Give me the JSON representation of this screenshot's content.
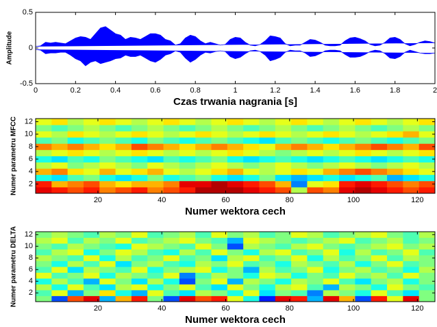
{
  "chart_data": [
    {
      "type": "area",
      "ylabel": "Amplitude",
      "xlabel": "Czas trwania nagrania [s]",
      "color": "#0000ff",
      "xlim": [
        0,
        2
      ],
      "ylim": [
        -0.5,
        0.5
      ],
      "xticks": [
        0,
        0.2,
        0.4,
        0.6,
        0.8,
        1,
        1.2,
        1.4,
        1.6,
        1.8,
        2
      ],
      "yticks": [
        -0.5,
        0,
        0.5
      ],
      "x": [
        0,
        0.025,
        0.05,
        0.075,
        0.1,
        0.125,
        0.15,
        0.175,
        0.2,
        0.225,
        0.25,
        0.275,
        0.3,
        0.325,
        0.35,
        0.375,
        0.4,
        0.425,
        0.45,
        0.475,
        0.5,
        0.525,
        0.55,
        0.575,
        0.6,
        0.625,
        0.65,
        0.675,
        0.7,
        0.725,
        0.75,
        0.775,
        0.8,
        0.825,
        0.85,
        0.875,
        0.9,
        0.925,
        0.95,
        0.975,
        1,
        1.025,
        1.05,
        1.075,
        1.1,
        1.125,
        1.15,
        1.175,
        1.2,
        1.225,
        1.25,
        1.275,
        1.3,
        1.325,
        1.35,
        1.375,
        1.4,
        1.425,
        1.45,
        1.475,
        1.5,
        1.525,
        1.55,
        1.575,
        1.6,
        1.625,
        1.65,
        1.675,
        1.7,
        1.725,
        1.75,
        1.775,
        1.8,
        1.825,
        1.85,
        1.875,
        1.9,
        1.925,
        1.95,
        1.975,
        2
      ],
      "upper": [
        0.02,
        0.03,
        0.08,
        0.07,
        0.08,
        0.07,
        0.06,
        0.1,
        0.14,
        0.16,
        0.15,
        0.12,
        0.2,
        0.28,
        0.3,
        0.25,
        0.2,
        0.18,
        0.12,
        0.15,
        0.14,
        0.12,
        0.16,
        0.2,
        0.2,
        0.18,
        0.12,
        0.1,
        0.04,
        0.06,
        0.14,
        0.18,
        0.16,
        0.1,
        0.06,
        0.08,
        0.06,
        0.04,
        0.05,
        0.12,
        0.15,
        0.14,
        0.08,
        0.04,
        0.03,
        0.05,
        0.1,
        0.17,
        0.16,
        0.14,
        0.06,
        0.03,
        0.04,
        0.04,
        0.08,
        0.12,
        0.11,
        0.08,
        0.04,
        0.03,
        0.03,
        0.04,
        0.1,
        0.14,
        0.15,
        0.13,
        0.1,
        0.05,
        0.03,
        0.04,
        0.08,
        0.14,
        0.15,
        0.12,
        0.06,
        0.03,
        0.05,
        0.08,
        0.1,
        0.09,
        0.07
      ],
      "lower": [
        -0.02,
        -0.03,
        -0.08,
        -0.07,
        -0.07,
        -0.06,
        -0.06,
        -0.1,
        -0.15,
        -0.18,
        -0.25,
        -0.2,
        -0.18,
        -0.22,
        -0.2,
        -0.18,
        -0.15,
        -0.14,
        -0.1,
        -0.12,
        -0.12,
        -0.1,
        -0.14,
        -0.18,
        -0.2,
        -0.16,
        -0.1,
        -0.08,
        -0.04,
        -0.06,
        -0.14,
        -0.2,
        -0.16,
        -0.1,
        -0.06,
        -0.07,
        -0.05,
        -0.04,
        -0.05,
        -0.12,
        -0.15,
        -0.13,
        -0.08,
        -0.04,
        -0.03,
        -0.05,
        -0.1,
        -0.18,
        -0.16,
        -0.13,
        -0.06,
        -0.03,
        -0.04,
        -0.04,
        -0.07,
        -0.12,
        -0.11,
        -0.08,
        -0.04,
        -0.03,
        -0.03,
        -0.04,
        -0.09,
        -0.13,
        -0.13,
        -0.12,
        -0.09,
        -0.05,
        -0.03,
        -0.04,
        -0.08,
        -0.14,
        -0.15,
        -0.12,
        -0.06,
        -0.03,
        -0.05,
        -0.07,
        -0.08,
        -0.08,
        -0.07
      ]
    },
    {
      "type": "heatmap",
      "ylabel": "Numer parametru MFCC",
      "xlabel": "Numer wektora cech",
      "colormap": "jet",
      "xlim": [
        0.5,
        125.5
      ],
      "ylim": [
        0.5,
        12.5
      ],
      "zlim": [
        0,
        1
      ],
      "xticks": [
        20,
        40,
        60,
        80,
        100,
        120
      ],
      "yticks": [
        2,
        4,
        6,
        8,
        10,
        12
      ],
      "z": [
        [
          0.9,
          0.85,
          0.8,
          0.85,
          0.75,
          0.8,
          0.85,
          0.75,
          0.8,
          0.85,
          0.95,
          0.95,
          0.95,
          0.9,
          0.85,
          0.8,
          0.55,
          0.8,
          0.75,
          0.9,
          0.95,
          0.9,
          0.85,
          0.8,
          0.85
        ],
        [
          0.85,
          0.7,
          0.75,
          0.8,
          0.7,
          0.65,
          0.7,
          0.7,
          0.75,
          0.9,
          0.9,
          0.95,
          0.9,
          0.85,
          0.8,
          0.7,
          0.25,
          0.6,
          0.65,
          0.85,
          0.9,
          0.85,
          0.8,
          0.75,
          0.8
        ],
        [
          0.4,
          0.35,
          0.45,
          0.5,
          0.4,
          0.35,
          0.4,
          0.5,
          0.4,
          0.45,
          0.5,
          0.4,
          0.35,
          0.4,
          0.5,
          0.35,
          0.3,
          0.35,
          0.4,
          0.35,
          0.4,
          0.45,
          0.3,
          0.35,
          0.4
        ],
        [
          0.7,
          0.75,
          0.65,
          0.6,
          0.7,
          0.6,
          0.65,
          0.7,
          0.6,
          0.55,
          0.6,
          0.65,
          0.7,
          0.6,
          0.55,
          0.6,
          0.65,
          0.6,
          0.7,
          0.75,
          0.8,
          0.75,
          0.7,
          0.65,
          0.6
        ],
        [
          0.55,
          0.6,
          0.5,
          0.55,
          0.6,
          0.55,
          0.5,
          0.6,
          0.55,
          0.5,
          0.55,
          0.6,
          0.55,
          0.5,
          0.55,
          0.6,
          0.55,
          0.5,
          0.55,
          0.6,
          0.55,
          0.5,
          0.55,
          0.6,
          0.55
        ],
        [
          0.4,
          0.35,
          0.45,
          0.4,
          0.5,
          0.45,
          0.4,
          0.35,
          0.45,
          0.4,
          0.45,
          0.5,
          0.4,
          0.35,
          0.4,
          0.45,
          0.4,
          0.35,
          0.4,
          0.45,
          0.4,
          0.35,
          0.4,
          0.45,
          0.4
        ],
        [
          0.55,
          0.6,
          0.65,
          0.6,
          0.55,
          0.6,
          0.65,
          0.6,
          0.55,
          0.6,
          0.55,
          0.6,
          0.65,
          0.6,
          0.55,
          0.5,
          0.55,
          0.6,
          0.55,
          0.6,
          0.65,
          0.6,
          0.55,
          0.6,
          0.65
        ],
        [
          0.75,
          0.7,
          0.75,
          0.7,
          0.65,
          0.7,
          0.8,
          0.75,
          0.7,
          0.65,
          0.7,
          0.75,
          0.7,
          0.65,
          0.6,
          0.7,
          0.75,
          0.7,
          0.65,
          0.7,
          0.75,
          0.8,
          0.75,
          0.7,
          0.8
        ],
        [
          0.45,
          0.5,
          0.4,
          0.45,
          0.5,
          0.45,
          0.4,
          0.5,
          0.45,
          0.4,
          0.45,
          0.5,
          0.45,
          0.4,
          0.35,
          0.45,
          0.5,
          0.45,
          0.4,
          0.45,
          0.5,
          0.45,
          0.4,
          0.45,
          0.5
        ],
        [
          0.6,
          0.55,
          0.65,
          0.6,
          0.55,
          0.6,
          0.65,
          0.6,
          0.55,
          0.6,
          0.65,
          0.6,
          0.55,
          0.6,
          0.65,
          0.6,
          0.55,
          0.6,
          0.65,
          0.6,
          0.55,
          0.6,
          0.65,
          0.7,
          0.6
        ],
        [
          0.5,
          0.45,
          0.5,
          0.55,
          0.5,
          0.45,
          0.5,
          0.55,
          0.5,
          0.45,
          0.5,
          0.55,
          0.5,
          0.45,
          0.5,
          0.55,
          0.5,
          0.45,
          0.5,
          0.55,
          0.5,
          0.45,
          0.5,
          0.55,
          0.5
        ],
        [
          0.6,
          0.65,
          0.55,
          0.6,
          0.65,
          0.6,
          0.55,
          0.6,
          0.65,
          0.6,
          0.55,
          0.6,
          0.65,
          0.6,
          0.55,
          0.6,
          0.65,
          0.6,
          0.55,
          0.6,
          0.65,
          0.6,
          0.55,
          0.6,
          0.65
        ]
      ]
    },
    {
      "type": "heatmap",
      "ylabel": "Numer parametru DELTA",
      "xlabel": "Numer wektora cech",
      "colormap": "jet",
      "xlim": [
        0.5,
        125.5
      ],
      "ylim": [
        0.5,
        12.5
      ],
      "zlim": [
        0,
        1
      ],
      "xticks": [
        20,
        40,
        60,
        80,
        100,
        120
      ],
      "yticks": [
        2,
        4,
        6,
        8,
        10,
        12
      ],
      "z": [
        [
          0.5,
          0.2,
          0.8,
          0.9,
          0.3,
          0.7,
          0.85,
          0.5,
          0.2,
          0.9,
          0.8,
          0.85,
          0.6,
          0.4,
          0.15,
          0.9,
          0.85,
          0.3,
          0.9,
          0.7,
          0.2,
          0.85,
          0.6,
          0.9,
          0.5
        ],
        [
          0.45,
          0.6,
          0.3,
          0.5,
          0.65,
          0.4,
          0.3,
          0.6,
          0.45,
          0.35,
          0.55,
          0.5,
          0.4,
          0.6,
          0.35,
          0.5,
          0.45,
          0.25,
          0.55,
          0.5,
          0.4,
          0.6,
          0.45,
          0.35,
          0.5
        ],
        [
          0.55,
          0.4,
          0.6,
          0.45,
          0.35,
          0.55,
          0.6,
          0.4,
          0.5,
          0.6,
          0.45,
          0.35,
          0.6,
          0.5,
          0.4,
          0.55,
          0.6,
          0.45,
          0.3,
          0.55,
          0.5,
          0.4,
          0.6,
          0.5,
          0.45
        ],
        [
          0.4,
          0.55,
          0.45,
          0.3,
          0.6,
          0.5,
          0.35,
          0.55,
          0.4,
          0.2,
          0.5,
          0.6,
          0.3,
          0.55,
          0.5,
          0.4,
          0.55,
          0.5,
          0.6,
          0.45,
          0.35,
          0.5,
          0.55,
          0.4,
          0.5
        ],
        [
          0.6,
          0.45,
          0.5,
          0.6,
          0.4,
          0.55,
          0.5,
          0.45,
          0.6,
          0.25,
          0.45,
          0.55,
          0.5,
          0.4,
          0.6,
          0.55,
          0.4,
          0.5,
          0.45,
          0.6,
          0.5,
          0.55,
          0.45,
          0.6,
          0.5
        ],
        [
          0.45,
          0.6,
          0.35,
          0.55,
          0.5,
          0.45,
          0.6,
          0.4,
          0.5,
          0.55,
          0.6,
          0.4,
          0.5,
          0.3,
          0.55,
          0.45,
          0.5,
          0.6,
          0.4,
          0.5,
          0.55,
          0.45,
          0.5,
          0.4,
          0.55
        ],
        [
          0.5,
          0.4,
          0.55,
          0.45,
          0.6,
          0.35,
          0.5,
          0.55,
          0.45,
          0.4,
          0.55,
          0.5,
          0.6,
          0.45,
          0.5,
          0.4,
          0.55,
          0.5,
          0.45,
          0.55,
          0.4,
          0.5,
          0.6,
          0.45,
          0.5
        ],
        [
          0.55,
          0.5,
          0.45,
          0.6,
          0.4,
          0.55,
          0.45,
          0.5,
          0.6,
          0.45,
          0.5,
          0.35,
          0.55,
          0.6,
          0.45,
          0.5,
          0.6,
          0.4,
          0.55,
          0.45,
          0.5,
          0.6,
          0.45,
          0.55,
          0.5
        ],
        [
          0.45,
          0.55,
          0.6,
          0.4,
          0.5,
          0.6,
          0.55,
          0.45,
          0.4,
          0.55,
          0.45,
          0.6,
          0.5,
          0.4,
          0.55,
          0.6,
          0.45,
          0.5,
          0.6,
          0.4,
          0.55,
          0.45,
          0.5,
          0.6,
          0.45
        ],
        [
          0.5,
          0.45,
          0.55,
          0.5,
          0.45,
          0.4,
          0.6,
          0.55,
          0.5,
          0.45,
          0.6,
          0.5,
          0.2,
          0.55,
          0.5,
          0.45,
          0.55,
          0.6,
          0.5,
          0.45,
          0.5,
          0.55,
          0.6,
          0.5,
          0.55
        ],
        [
          0.55,
          0.6,
          0.45,
          0.55,
          0.5,
          0.6,
          0.45,
          0.5,
          0.55,
          0.6,
          0.5,
          0.45,
          0.3,
          0.6,
          0.55,
          0.5,
          0.45,
          0.5,
          0.55,
          0.6,
          0.45,
          0.5,
          0.55,
          0.45,
          0.5
        ],
        [
          0.5,
          0.55,
          0.5,
          0.45,
          0.55,
          0.5,
          0.6,
          0.45,
          0.5,
          0.55,
          0.45,
          0.6,
          0.5,
          0.55,
          0.45,
          0.5,
          0.6,
          0.55,
          0.45,
          0.5,
          0.55,
          0.6,
          0.5,
          0.45,
          0.55
        ]
      ]
    }
  ]
}
